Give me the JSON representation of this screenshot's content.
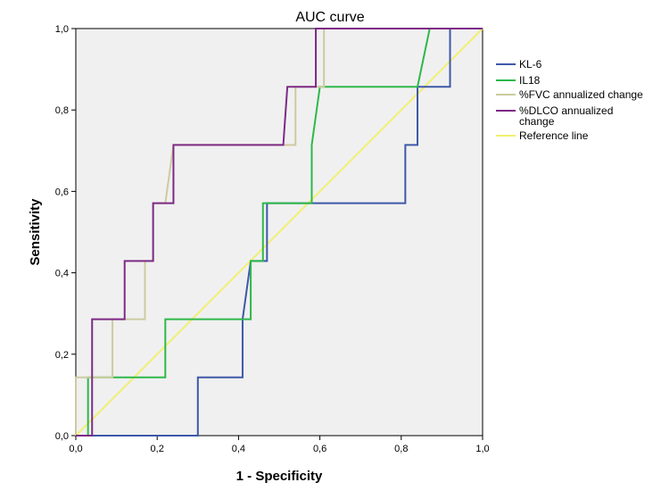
{
  "chart_data": {
    "type": "line",
    "title": "AUC curve",
    "xlabel": "1 - Specificity",
    "ylabel": "Sensitivity",
    "xlim": [
      0,
      1
    ],
    "ylim": [
      0,
      1
    ],
    "x_ticks": [
      "0,0",
      "0,2",
      "0,4",
      "0,6",
      "0,8",
      "1,0"
    ],
    "y_ticks": [
      "0,0",
      "0,2",
      "0,4",
      "0,6",
      "0,8",
      "1,0"
    ],
    "grid": false,
    "plot_background": "#f0f0f0",
    "legend_position": "right",
    "series": [
      {
        "name": "KL-6",
        "color": "#3e58a8",
        "points": [
          [
            0,
            0
          ],
          [
            0.3,
            0
          ],
          [
            0.3,
            0.143
          ],
          [
            0.41,
            0.143
          ],
          [
            0.41,
            0.286
          ],
          [
            0.43,
            0.429
          ],
          [
            0.47,
            0.429
          ],
          [
            0.47,
            0.571
          ],
          [
            0.81,
            0.571
          ],
          [
            0.81,
            0.714
          ],
          [
            0.84,
            0.714
          ],
          [
            0.84,
            0.857
          ],
          [
            0.92,
            0.857
          ],
          [
            0.92,
            1
          ],
          [
            1,
            1
          ]
        ]
      },
      {
        "name": "IL18",
        "color": "#2eb84a",
        "points": [
          [
            0,
            0
          ],
          [
            0.03,
            0
          ],
          [
            0.03,
            0.143
          ],
          [
            0.22,
            0.143
          ],
          [
            0.22,
            0.286
          ],
          [
            0.43,
            0.286
          ],
          [
            0.43,
            0.429
          ],
          [
            0.46,
            0.429
          ],
          [
            0.46,
            0.571
          ],
          [
            0.58,
            0.571
          ],
          [
            0.58,
            0.714
          ],
          [
            0.6,
            0.857
          ],
          [
            0.84,
            0.857
          ],
          [
            0.87,
            1
          ],
          [
            1,
            1
          ]
        ]
      },
      {
        "name": "%FVC annualized change",
        "color": "#cdcba0",
        "points": [
          [
            0,
            0
          ],
          [
            0,
            0.143
          ],
          [
            0.09,
            0.143
          ],
          [
            0.09,
            0.286
          ],
          [
            0.17,
            0.286
          ],
          [
            0.17,
            0.429
          ],
          [
            0.19,
            0.429
          ],
          [
            0.19,
            0.571
          ],
          [
            0.22,
            0.571
          ],
          [
            0.24,
            0.714
          ],
          [
            0.54,
            0.714
          ],
          [
            0.54,
            0.857
          ],
          [
            0.61,
            0.857
          ],
          [
            0.61,
            1
          ],
          [
            1,
            1
          ]
        ]
      },
      {
        "name": "%DLCO annualized\nchange",
        "color": "#7d2a86",
        "points": [
          [
            0,
            0
          ],
          [
            0.04,
            0
          ],
          [
            0.04,
            0.286
          ],
          [
            0.12,
            0.286
          ],
          [
            0.12,
            0.429
          ],
          [
            0.19,
            0.429
          ],
          [
            0.19,
            0.571
          ],
          [
            0.24,
            0.571
          ],
          [
            0.24,
            0.714
          ],
          [
            0.51,
            0.714
          ],
          [
            0.52,
            0.857
          ],
          [
            0.59,
            0.857
          ],
          [
            0.59,
            1
          ],
          [
            1,
            1
          ]
        ]
      },
      {
        "name": "Reference line",
        "color": "#f2ef6f",
        "points": [
          [
            0,
            0
          ],
          [
            1,
            1
          ]
        ]
      }
    ]
  }
}
